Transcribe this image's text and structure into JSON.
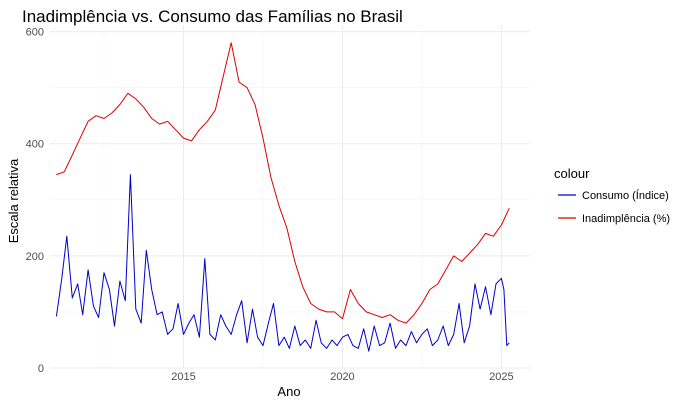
{
  "chart_data": {
    "type": "line",
    "title": "Inadimplência vs. Consumo das Famílias no Brasil",
    "xlabel": "Ano",
    "ylabel": "Escala relativa",
    "xlim": [
      2010.8,
      2025.9
    ],
    "ylim": [
      0,
      610
    ],
    "x_ticks": [
      2015,
      2020,
      2025
    ],
    "y_ticks": [
      0,
      200,
      400,
      600
    ],
    "grid": true,
    "legend": {
      "title": "colour",
      "position": "right"
    },
    "series": [
      {
        "name": "Consumo (Índice)",
        "color": "#0000cc",
        "points": [
          [
            2011.0,
            92
          ],
          [
            2011.17,
            160
          ],
          [
            2011.33,
            235
          ],
          [
            2011.5,
            125
          ],
          [
            2011.67,
            150
          ],
          [
            2011.83,
            95
          ],
          [
            2012.0,
            175
          ],
          [
            2012.17,
            110
          ],
          [
            2012.33,
            90
          ],
          [
            2012.5,
            170
          ],
          [
            2012.67,
            140
          ],
          [
            2012.83,
            75
          ],
          [
            2013.0,
            155
          ],
          [
            2013.17,
            120
          ],
          [
            2013.33,
            345
          ],
          [
            2013.5,
            105
          ],
          [
            2013.67,
            80
          ],
          [
            2013.83,
            210
          ],
          [
            2014.0,
            140
          ],
          [
            2014.17,
            95
          ],
          [
            2014.33,
            100
          ],
          [
            2014.5,
            60
          ],
          [
            2014.67,
            70
          ],
          [
            2014.83,
            115
          ],
          [
            2015.0,
            60
          ],
          [
            2015.17,
            80
          ],
          [
            2015.33,
            95
          ],
          [
            2015.5,
            55
          ],
          [
            2015.67,
            195
          ],
          [
            2015.83,
            60
          ],
          [
            2016.0,
            50
          ],
          [
            2016.17,
            95
          ],
          [
            2016.33,
            75
          ],
          [
            2016.5,
            60
          ],
          [
            2016.67,
            95
          ],
          [
            2016.83,
            120
          ],
          [
            2017.0,
            45
          ],
          [
            2017.17,
            105
          ],
          [
            2017.33,
            55
          ],
          [
            2017.5,
            40
          ],
          [
            2017.67,
            80
          ],
          [
            2017.83,
            115
          ],
          [
            2018.0,
            40
          ],
          [
            2018.17,
            55
          ],
          [
            2018.33,
            35
          ],
          [
            2018.5,
            75
          ],
          [
            2018.67,
            40
          ],
          [
            2018.83,
            50
          ],
          [
            2019.0,
            35
          ],
          [
            2019.17,
            85
          ],
          [
            2019.33,
            45
          ],
          [
            2019.5,
            35
          ],
          [
            2019.67,
            50
          ],
          [
            2019.83,
            40
          ],
          [
            2020.0,
            55
          ],
          [
            2020.17,
            60
          ],
          [
            2020.33,
            40
          ],
          [
            2020.5,
            35
          ],
          [
            2020.67,
            70
          ],
          [
            2020.83,
            30
          ],
          [
            2021.0,
            75
          ],
          [
            2021.17,
            40
          ],
          [
            2021.33,
            45
          ],
          [
            2021.5,
            80
          ],
          [
            2021.67,
            35
          ],
          [
            2021.83,
            50
          ],
          [
            2022.0,
            40
          ],
          [
            2022.17,
            65
          ],
          [
            2022.33,
            45
          ],
          [
            2022.5,
            60
          ],
          [
            2022.67,
            70
          ],
          [
            2022.83,
            40
          ],
          [
            2023.0,
            50
          ],
          [
            2023.17,
            75
          ],
          [
            2023.33,
            40
          ],
          [
            2023.5,
            60
          ],
          [
            2023.67,
            115
          ],
          [
            2023.83,
            45
          ],
          [
            2024.0,
            75
          ],
          [
            2024.17,
            150
          ],
          [
            2024.33,
            105
          ],
          [
            2024.5,
            145
          ],
          [
            2024.67,
            95
          ],
          [
            2024.83,
            150
          ],
          [
            2025.0,
            160
          ],
          [
            2025.08,
            140
          ],
          [
            2025.17,
            40
          ],
          [
            2025.25,
            45
          ]
        ]
      },
      {
        "name": "Inadimplência (%)",
        "color": "#dd0000",
        "points": [
          [
            2011.0,
            345
          ],
          [
            2011.25,
            350
          ],
          [
            2011.5,
            380
          ],
          [
            2011.75,
            410
          ],
          [
            2012.0,
            440
          ],
          [
            2012.25,
            450
          ],
          [
            2012.5,
            445
          ],
          [
            2012.75,
            455
          ],
          [
            2013.0,
            470
          ],
          [
            2013.25,
            490
          ],
          [
            2013.5,
            480
          ],
          [
            2013.75,
            465
          ],
          [
            2014.0,
            445
          ],
          [
            2014.25,
            435
          ],
          [
            2014.5,
            440
          ],
          [
            2014.75,
            425
          ],
          [
            2015.0,
            410
          ],
          [
            2015.25,
            405
          ],
          [
            2015.5,
            425
          ],
          [
            2015.75,
            440
          ],
          [
            2016.0,
            460
          ],
          [
            2016.25,
            520
          ],
          [
            2016.5,
            580
          ],
          [
            2016.75,
            510
          ],
          [
            2017.0,
            500
          ],
          [
            2017.25,
            470
          ],
          [
            2017.5,
            410
          ],
          [
            2017.75,
            340
          ],
          [
            2018.0,
            290
          ],
          [
            2018.25,
            250
          ],
          [
            2018.5,
            190
          ],
          [
            2018.75,
            145
          ],
          [
            2019.0,
            115
          ],
          [
            2019.25,
            105
          ],
          [
            2019.5,
            100
          ],
          [
            2019.75,
            100
          ],
          [
            2020.0,
            88
          ],
          [
            2020.25,
            140
          ],
          [
            2020.5,
            115
          ],
          [
            2020.75,
            100
          ],
          [
            2021.0,
            95
          ],
          [
            2021.25,
            90
          ],
          [
            2021.5,
            95
          ],
          [
            2021.75,
            85
          ],
          [
            2022.0,
            80
          ],
          [
            2022.25,
            95
          ],
          [
            2022.5,
            115
          ],
          [
            2022.75,
            140
          ],
          [
            2023.0,
            150
          ],
          [
            2023.25,
            175
          ],
          [
            2023.5,
            200
          ],
          [
            2023.75,
            190
          ],
          [
            2024.0,
            205
          ],
          [
            2024.25,
            220
          ],
          [
            2024.5,
            240
          ],
          [
            2024.75,
            235
          ],
          [
            2025.0,
            255
          ],
          [
            2025.25,
            285
          ]
        ]
      }
    ]
  }
}
